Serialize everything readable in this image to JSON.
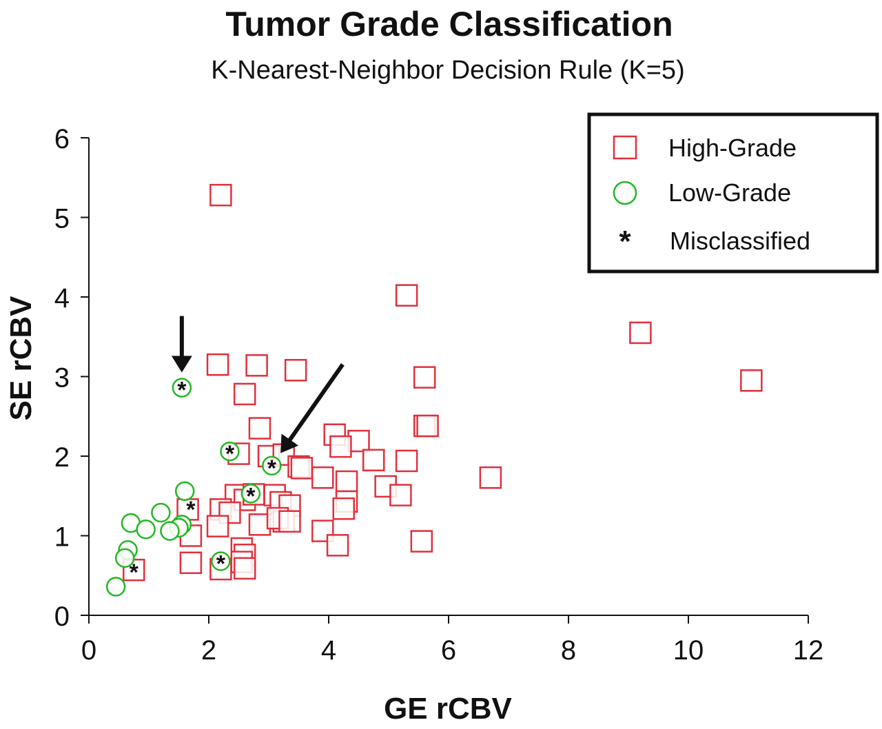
{
  "chart_data": {
    "type": "scatter",
    "title": "Tumor Grade Classification",
    "subtitle": "K-Nearest-Neighbor Decision Rule (K=5)",
    "xlabel": "GE rCBV",
    "ylabel": "SE rCBV",
    "xlim": [
      0,
      12
    ],
    "ylim": [
      0,
      6
    ],
    "xticks": [
      "0",
      "2",
      "4",
      "6",
      "8",
      "10",
      "12"
    ],
    "yticks": [
      "0",
      "1",
      "2",
      "3",
      "4",
      "5",
      "6"
    ],
    "grid": false,
    "legend_position": "top-right",
    "colors": {
      "high": "#e0303c",
      "low": "#22b822",
      "mis": "#111111"
    },
    "series": [
      {
        "name": "High-Grade",
        "marker": "square",
        "points": [
          [
            2.2,
            5.28
          ],
          [
            5.3,
            4.02
          ],
          [
            9.2,
            3.55
          ],
          [
            11.05,
            2.95
          ],
          [
            2.15,
            3.15
          ],
          [
            2.8,
            3.14
          ],
          [
            3.45,
            3.08
          ],
          [
            2.6,
            2.78
          ],
          [
            5.6,
            2.99
          ],
          [
            2.85,
            2.35
          ],
          [
            5.6,
            2.38
          ],
          [
            5.65,
            2.38
          ],
          [
            4.1,
            2.27
          ],
          [
            4.5,
            2.19
          ],
          [
            4.2,
            2.12
          ],
          [
            2.5,
            2.03
          ],
          [
            3.0,
            2.0
          ],
          [
            3.25,
            2.02
          ],
          [
            4.75,
            1.95
          ],
          [
            5.3,
            1.94
          ],
          [
            3.5,
            1.87
          ],
          [
            3.55,
            1.85
          ],
          [
            3.9,
            1.73
          ],
          [
            4.3,
            1.68
          ],
          [
            6.7,
            1.73
          ],
          [
            4.95,
            1.62
          ],
          [
            2.45,
            1.51
          ],
          [
            2.6,
            1.45
          ],
          [
            2.75,
            1.52
          ],
          [
            3.1,
            1.51
          ],
          [
            3.2,
            1.42
          ],
          [
            3.35,
            1.38
          ],
          [
            4.3,
            1.43
          ],
          [
            4.25,
            1.34
          ],
          [
            5.2,
            1.51
          ],
          [
            2.2,
            1.33
          ],
          [
            2.35,
            1.29
          ],
          [
            1.65,
            1.33
          ],
          [
            2.15,
            1.12
          ],
          [
            2.85,
            1.14
          ],
          [
            3.25,
            1.18
          ],
          [
            3.15,
            1.22
          ],
          [
            3.35,
            1.18
          ],
          [
            3.9,
            1.06
          ],
          [
            4.15,
            0.88
          ],
          [
            5.55,
            0.93
          ],
          [
            1.7,
            1.0
          ],
          [
            1.7,
            0.66
          ],
          [
            2.55,
            0.84
          ],
          [
            2.6,
            0.76
          ],
          [
            2.55,
            0.67
          ],
          [
            2.6,
            0.59
          ],
          [
            2.2,
            0.58
          ],
          [
            0.75,
            0.57
          ]
        ]
      },
      {
        "name": "Low-Grade",
        "marker": "circle",
        "points": [
          [
            1.55,
            2.86
          ],
          [
            2.35,
            2.06
          ],
          [
            3.05,
            1.88
          ],
          [
            2.7,
            1.53
          ],
          [
            1.6,
            1.56
          ],
          [
            1.55,
            1.14
          ],
          [
            1.5,
            1.1
          ],
          [
            1.2,
            1.29
          ],
          [
            1.35,
            1.06
          ],
          [
            0.7,
            1.16
          ],
          [
            0.95,
            1.08
          ],
          [
            0.65,
            0.82
          ],
          [
            0.6,
            0.72
          ],
          [
            0.45,
            0.36
          ],
          [
            2.2,
            0.68
          ]
        ]
      },
      {
        "name": "Misclassified",
        "marker": "asterisk",
        "points": [
          [
            1.55,
            2.86
          ],
          [
            2.35,
            2.06
          ],
          [
            3.05,
            1.88
          ],
          [
            2.7,
            1.53
          ],
          [
            1.7,
            1.36
          ],
          [
            2.2,
            0.68
          ],
          [
            0.75,
            0.57
          ]
        ]
      }
    ],
    "annotations": [
      {
        "type": "arrow",
        "points_to": [
          1.55,
          2.86
        ]
      },
      {
        "type": "arrow",
        "points_to": [
          3.05,
          1.88
        ]
      }
    ]
  }
}
